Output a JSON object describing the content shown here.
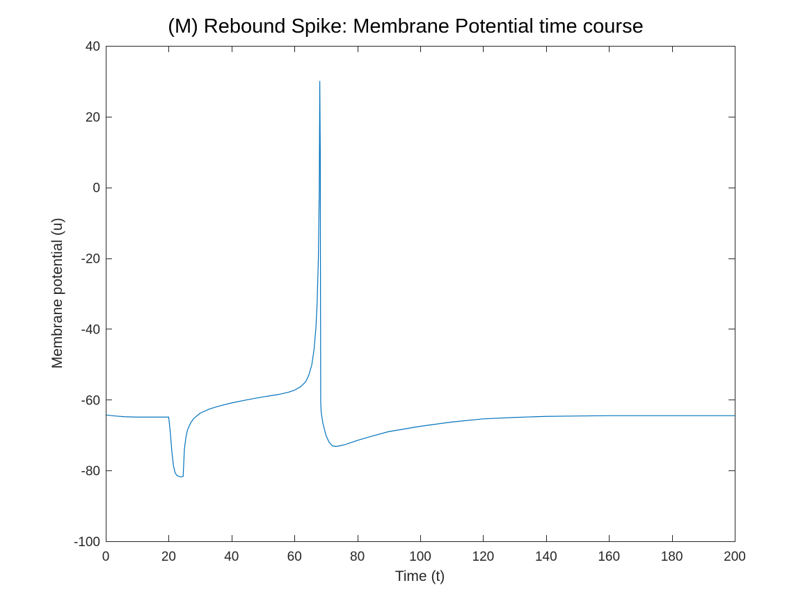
{
  "chart_data": {
    "type": "line",
    "title": "(M) Rebound Spike: Membrane Potential time course",
    "xlabel": "Time (t)",
    "ylabel": "Membrane potential (u)",
    "xlim": [
      0,
      200
    ],
    "ylim": [
      -100,
      40
    ],
    "xticks": [
      0,
      20,
      40,
      60,
      80,
      100,
      120,
      140,
      160,
      180,
      200
    ],
    "yticks": [
      -100,
      -80,
      -60,
      -40,
      -20,
      0,
      20,
      40
    ],
    "xtick_labels": [
      "0",
      "20",
      "40",
      "60",
      "80",
      "100",
      "120",
      "140",
      "160",
      "180",
      "200"
    ],
    "ytick_labels": [
      "-100",
      "-80",
      "-60",
      "-40",
      "-20",
      "0",
      "20",
      "40"
    ],
    "grid": false,
    "box": true,
    "colors": {
      "line": "#0072BD",
      "axes": "#262626"
    },
    "series": [
      {
        "x": [
          0,
          3,
          6,
          10,
          14,
          18,
          20,
          20.5,
          21,
          21.5,
          22,
          22.5,
          23,
          23.5,
          24,
          24.6,
          25,
          25.5,
          26,
          27,
          28,
          30,
          33,
          36,
          40,
          45,
          50,
          55,
          58,
          60,
          62,
          63.5,
          64.5,
          65.5,
          66.2,
          66.8,
          67.2,
          67.6,
          67.9,
          68.05,
          68.2,
          68.35,
          68.5,
          69,
          70,
          71,
          72,
          73,
          74,
          76,
          80,
          85,
          90,
          100,
          110,
          120,
          130,
          140,
          150,
          160,
          170,
          180,
          190,
          200
        ],
        "y": [
          -64.3,
          -64.6,
          -64.8,
          -64.9,
          -64.9,
          -64.9,
          -64.9,
          -69,
          -74.5,
          -78.5,
          -80.5,
          -81.3,
          -81.6,
          -81.7,
          -81.8,
          -81.7,
          -74,
          -70.5,
          -68.5,
          -66.5,
          -65.3,
          -63.8,
          -62.6,
          -61.8,
          -60.9,
          -60,
          -59.2,
          -58.5,
          -57.9,
          -57.3,
          -56.3,
          -55,
          -53.2,
          -50.2,
          -46,
          -40,
          -33,
          -20,
          0,
          30,
          10,
          -61,
          -63.5,
          -66.5,
          -70,
          -72,
          -73,
          -73.2,
          -73.1,
          -72.7,
          -71.5,
          -70.2,
          -69,
          -67.5,
          -66.3,
          -65.4,
          -65,
          -64.7,
          -64.6,
          -64.5,
          -64.5,
          -64.5,
          -64.5,
          -64.5
        ]
      }
    ]
  }
}
